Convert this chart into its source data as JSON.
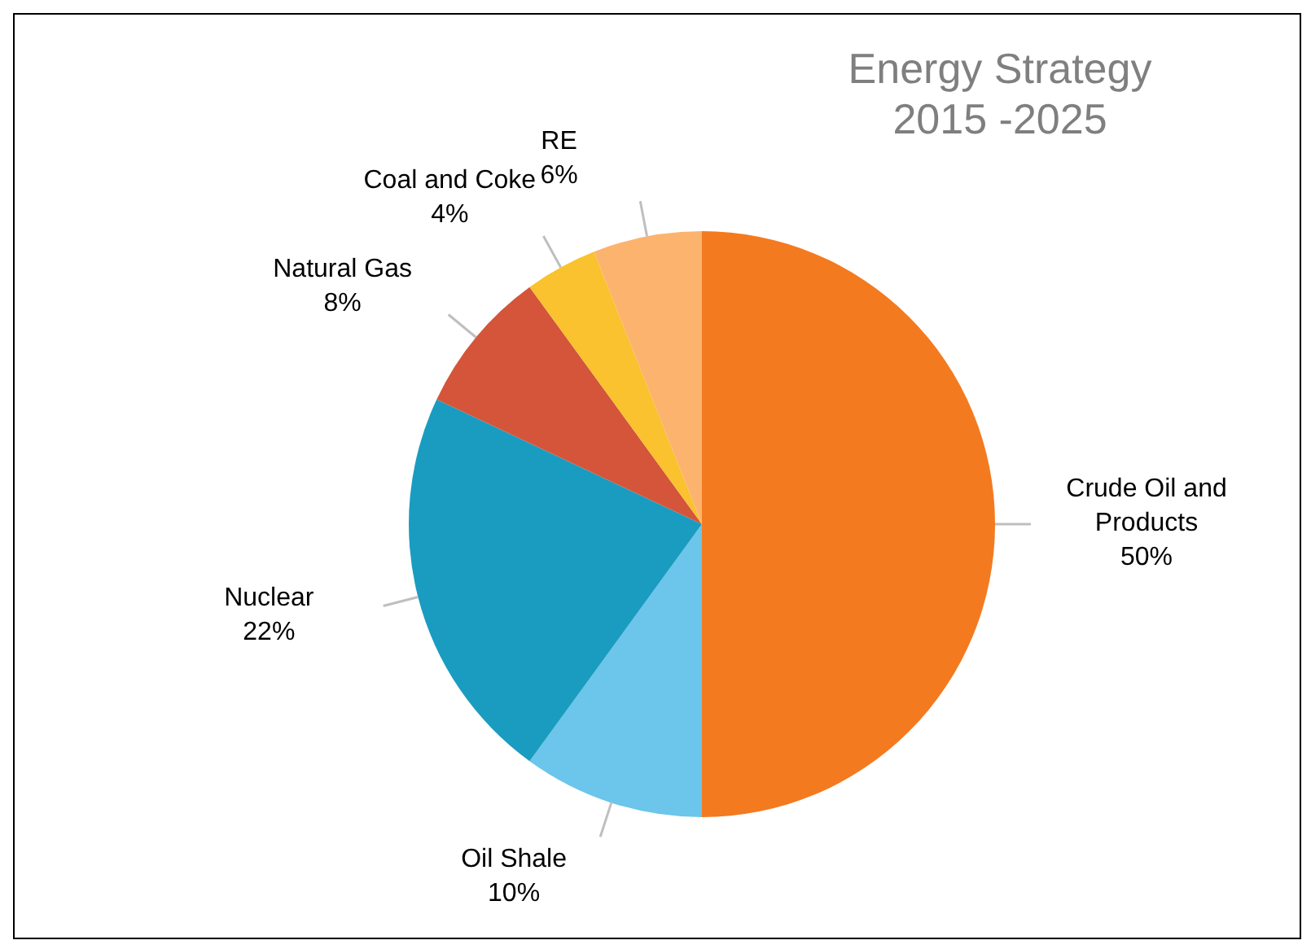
{
  "chart_data": {
    "type": "pie",
    "title": "Energy Strategy 2015 -2025",
    "categories": [
      "Crude Oil and Products",
      "Oil Shale",
      "Nuclear",
      "Natural Gas",
      "Coal and Coke",
      "RE"
    ],
    "values": [
      50,
      10,
      22,
      8,
      4,
      6
    ],
    "colors": [
      "#f47a1f",
      "#6cc5ea",
      "#1a9cc0",
      "#d4553a",
      "#f9c22e",
      "#fbb36e"
    ],
    "value_labels": [
      "50%",
      "10%",
      "22%",
      "8%",
      "4%",
      "6%"
    ],
    "legend": false
  }
}
